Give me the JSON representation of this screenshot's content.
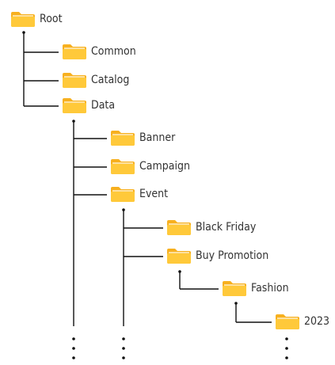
{
  "tree": {
    "folder_icon": "folder-icon",
    "colors": {
      "folder": "#F7B01F",
      "folder_tab": "#F9C04A",
      "folder_front": "#FFC93A",
      "line": "#111111",
      "label": "#333333"
    },
    "nodes": [
      {
        "id": "root",
        "label": "Root"
      },
      {
        "id": "common",
        "label": "Common",
        "parent": "root"
      },
      {
        "id": "catalog",
        "label": "Catalog",
        "parent": "root"
      },
      {
        "id": "data",
        "label": "Data",
        "parent": "root"
      },
      {
        "id": "banner",
        "label": "Banner",
        "parent": "data"
      },
      {
        "id": "campaign",
        "label": "Campaign",
        "parent": "data"
      },
      {
        "id": "event",
        "label": "Event",
        "parent": "data"
      },
      {
        "id": "black-friday",
        "label": "Black Friday",
        "parent": "event"
      },
      {
        "id": "buy-promotion",
        "label": "Buy Promotion",
        "parent": "event"
      },
      {
        "id": "fashion",
        "label": "Fashion",
        "parent": "buy-promotion"
      },
      {
        "id": "year-2023",
        "label": "2023",
        "parent": "fashion"
      }
    ]
  }
}
